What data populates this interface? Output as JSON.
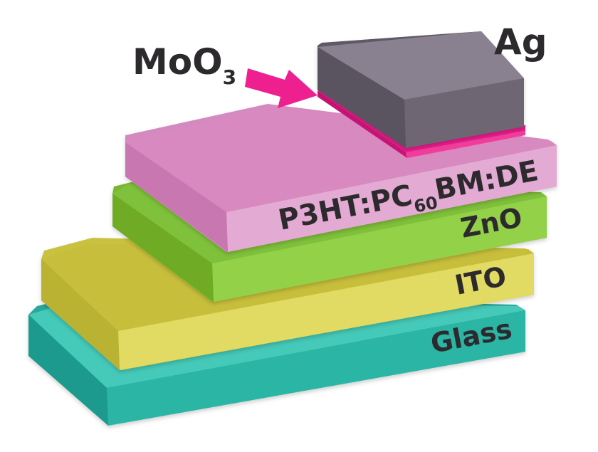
{
  "layers": [
    {
      "key": "glass",
      "label": "Glass",
      "color": "#2fbfae"
    },
    {
      "key": "ito",
      "label": "ITO",
      "color": "#dcd658"
    },
    {
      "key": "zno",
      "label": "ZnO",
      "color": "#8fcf3e"
    },
    {
      "key": "active",
      "label_main": "P3HT:PC",
      "label_sub": "60",
      "label_tail": "BM:DE",
      "color": "#dc8ec4"
    },
    {
      "key": "moo3",
      "label_main": "MoO",
      "label_sub": "3",
      "color": "#ec1b8c"
    },
    {
      "key": "ag",
      "label": "Ag",
      "color": "#7d7480"
    }
  ],
  "arrow": {
    "color": "#ee1f8f"
  }
}
